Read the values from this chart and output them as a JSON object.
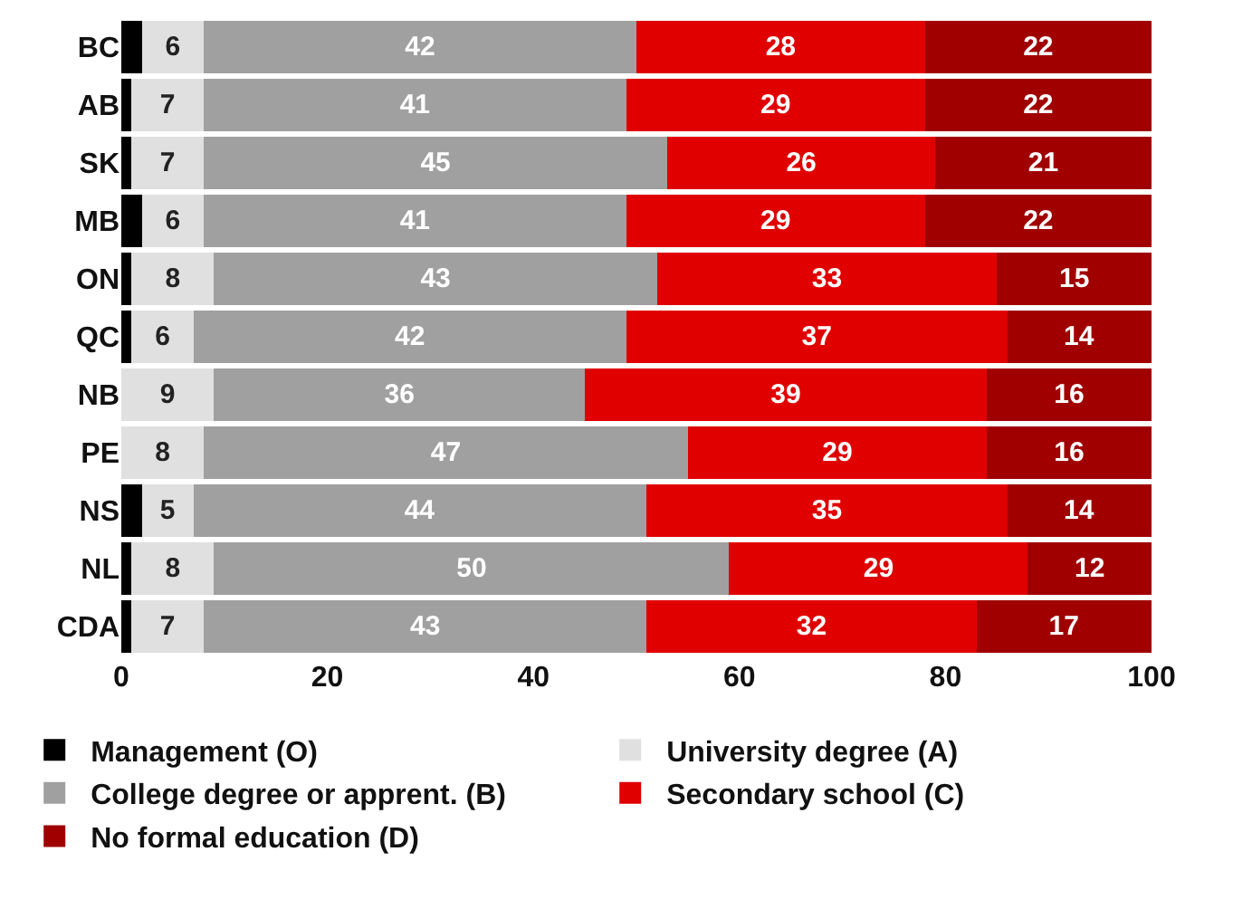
{
  "chart_data": {
    "type": "bar",
    "orientation": "horizontal",
    "stacked": true,
    "categories": [
      "BC",
      "AB",
      "SK",
      "MB",
      "ON",
      "QC",
      "NB",
      "PE",
      "NS",
      "NL",
      "CDA"
    ],
    "xlim": [
      0,
      100
    ],
    "xticks": [
      0,
      20,
      40,
      60,
      80,
      100
    ],
    "legend": "bottom",
    "series": [
      {
        "name": "Management (O)",
        "color": "#000000",
        "values": [
          2,
          1,
          1,
          2,
          1,
          1,
          0,
          0,
          2,
          1,
          1
        ],
        "value_labels": [
          null,
          null,
          null,
          null,
          null,
          null,
          null,
          null,
          null,
          null,
          null
        ]
      },
      {
        "name": "University degree (A)",
        "color": "#e0e0e0",
        "values": [
          6,
          7,
          7,
          6,
          8,
          6,
          9,
          8,
          5,
          8,
          7
        ],
        "value_labels": [
          "6",
          "7",
          "7",
          "6",
          "8",
          "6",
          "9",
          "8",
          "5",
          "8",
          "7"
        ]
      },
      {
        "name": "College degree or apprent. (B)",
        "color": "#a0a0a0",
        "values": [
          42,
          41,
          45,
          41,
          43,
          42,
          36,
          47,
          44,
          50,
          43
        ],
        "value_labels": [
          "42",
          "41",
          "45",
          "41",
          "43",
          "42",
          "36",
          "47",
          "44",
          "50",
          "43"
        ]
      },
      {
        "name": "Secondary school (C)",
        "color": "#e00000",
        "values": [
          28,
          29,
          26,
          29,
          33,
          37,
          39,
          29,
          35,
          29,
          32
        ],
        "value_labels": [
          "28",
          "29",
          "26",
          "29",
          "33",
          "37",
          "39",
          "29",
          "35",
          "29",
          "32"
        ]
      },
      {
        "name": "No formal education (D)",
        "color": "#a00000",
        "values": [
          22,
          22,
          21,
          22,
          15,
          14,
          16,
          16,
          14,
          12,
          17
        ],
        "value_labels": [
          "22",
          "22",
          "21",
          "22",
          "15",
          "14",
          "16",
          "16",
          "14",
          "12",
          "17"
        ]
      }
    ]
  }
}
